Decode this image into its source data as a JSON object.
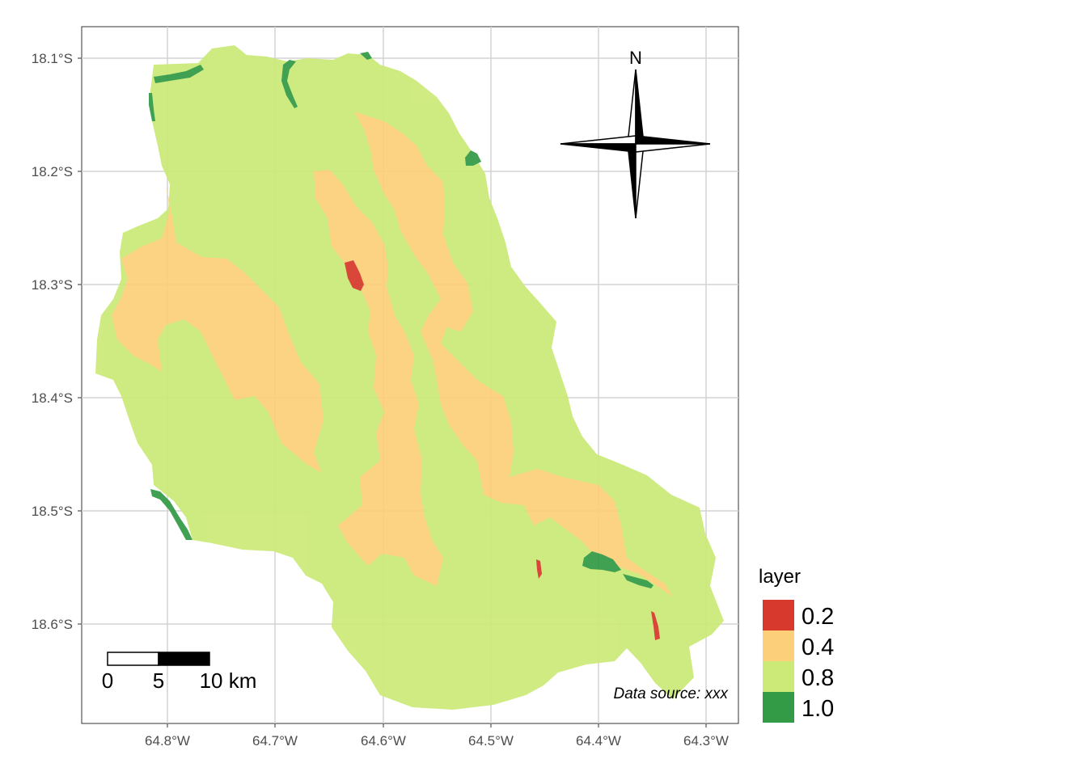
{
  "map": {
    "x_ticks": [
      "64.8°W",
      "64.7°W",
      "64.6°W",
      "64.5°W",
      "64.4°W",
      "64.3°W"
    ],
    "y_ticks": [
      "18.1°S",
      "18.2°S",
      "18.3°S",
      "18.4°S",
      "18.5°S",
      "18.6°S"
    ],
    "grid": true,
    "north_label": "N",
    "scale_bar": {
      "labels": [
        "0",
        "5",
        "10 km"
      ]
    },
    "data_source": "Data source: xxx"
  },
  "legend": {
    "title": "layer",
    "items": [
      {
        "label": "0.2",
        "color": "#d7392c"
      },
      {
        "label": "0.4",
        "color": "#fcd07a"
      },
      {
        "label": "0.8",
        "color": "#cbea78"
      },
      {
        "label": "1.0",
        "color": "#339a46"
      }
    ]
  }
}
